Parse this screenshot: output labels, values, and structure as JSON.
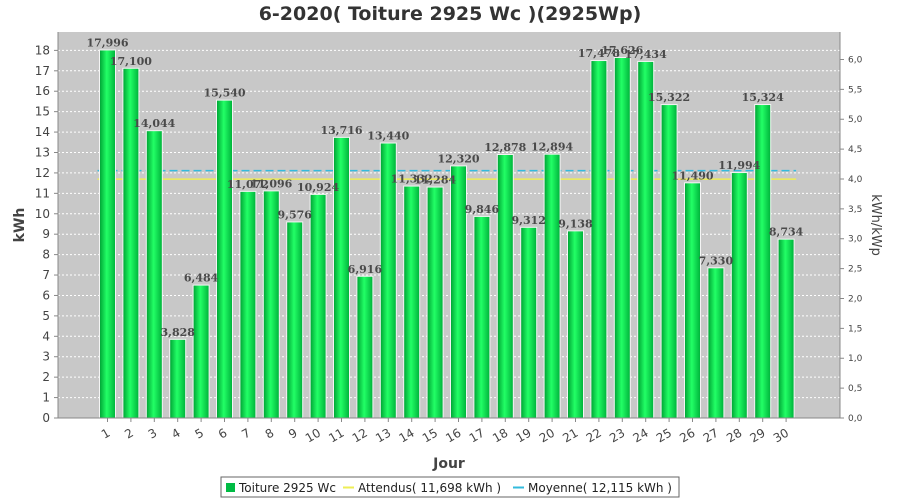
{
  "chart_data": {
    "type": "bar",
    "title": "6-2020( Toiture 2925 Wc )(2925Wp)",
    "xlabel": "Jour",
    "ylabel": "kWh",
    "y2label": "kWh/kWp",
    "ylim": [
      0,
      18.9
    ],
    "yticks": [
      "0",
      "1",
      "2",
      "3",
      "4",
      "5",
      "6",
      "7",
      "8",
      "9",
      "10",
      "11",
      "12",
      "13",
      "14",
      "15",
      "16",
      "17",
      "18"
    ],
    "y2lim": [
      0,
      6.46
    ],
    "y2ticks": [
      "0,0",
      "0,5",
      "1,0",
      "1,5",
      "2,0",
      "2,5",
      "3,0",
      "3,5",
      "4,0",
      "4,5",
      "5,0",
      "5,5",
      "6,0"
    ],
    "grid": true,
    "legend_position": "bottom",
    "categories": [
      "1",
      "2",
      "3",
      "4",
      "5",
      "6",
      "7",
      "8",
      "9",
      "10",
      "11",
      "12",
      "13",
      "14",
      "15",
      "16",
      "17",
      "18",
      "19",
      "20",
      "21",
      "22",
      "23",
      "24",
      "25",
      "26",
      "27",
      "28",
      "29",
      "30"
    ],
    "series": [
      {
        "name": "Toiture 2925 Wc",
        "color": "#00cc44",
        "values": [
          17.996,
          17.1,
          14.044,
          3.828,
          6.484,
          15.54,
          11.072,
          11.096,
          9.576,
          10.924,
          13.716,
          6.916,
          13.44,
          11.332,
          11.284,
          12.32,
          9.846,
          12.878,
          9.312,
          12.894,
          9.138,
          17.478,
          17.626,
          17.434,
          15.322,
          11.49,
          7.33,
          11.994,
          15.324,
          8.734
        ],
        "labels": [
          "17,996",
          "17,100",
          "14,044",
          "3,828",
          "6,484",
          "15,540",
          "11,072",
          "11,096",
          "9,576",
          "10,924",
          "13,716",
          "6,916",
          "13,440",
          "11,332",
          "11,284",
          "12,320",
          "9,846",
          "12,878",
          "9,312",
          "12,894",
          "9,138",
          "17,478",
          "17,626",
          "17,434",
          "15,322",
          "11,490",
          "7,330",
          "11,994",
          "15,324",
          "8,734"
        ]
      }
    ],
    "reference_lines": [
      {
        "name": "Attendus( 11,698 kWh )",
        "value": 11.698,
        "color": "#eeee55",
        "style": "solid"
      },
      {
        "name": "Moyenne( 12,115 kWh )",
        "value": 12.115,
        "color": "#33bbdd",
        "style": "dashed"
      }
    ]
  }
}
